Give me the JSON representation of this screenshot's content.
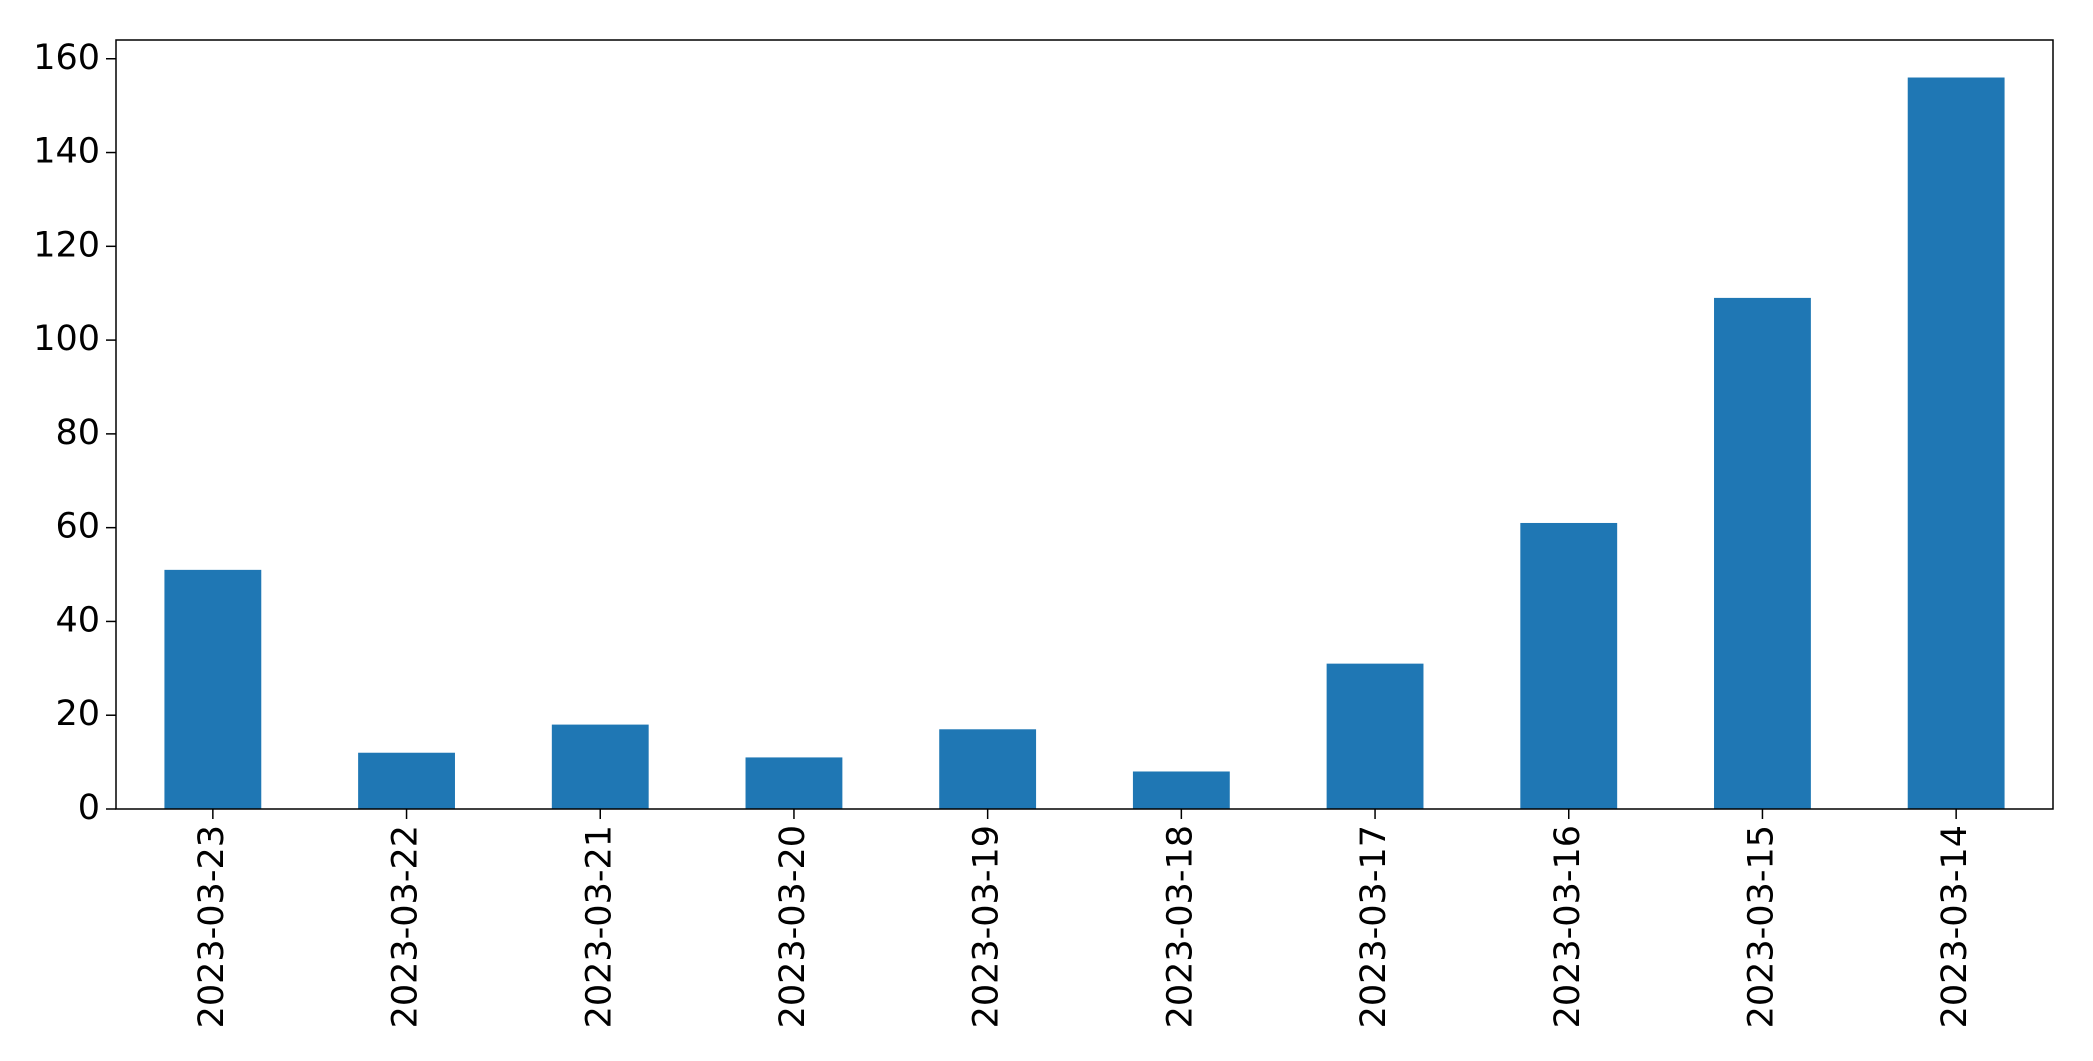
{
  "chart_data": {
    "type": "bar",
    "categories": [
      "2023-03-23",
      "2023-03-22",
      "2023-03-21",
      "2023-03-20",
      "2023-03-19",
      "2023-03-18",
      "2023-03-17",
      "2023-03-16",
      "2023-03-15",
      "2023-03-14"
    ],
    "values": [
      51,
      12,
      18,
      11,
      17,
      8,
      31,
      61,
      109,
      156
    ],
    "color": "#1f77b4",
    "ylim": [
      0,
      164
    ],
    "yticks": [
      0,
      20,
      40,
      60,
      80,
      100,
      120,
      140,
      160
    ],
    "grid": false
  }
}
